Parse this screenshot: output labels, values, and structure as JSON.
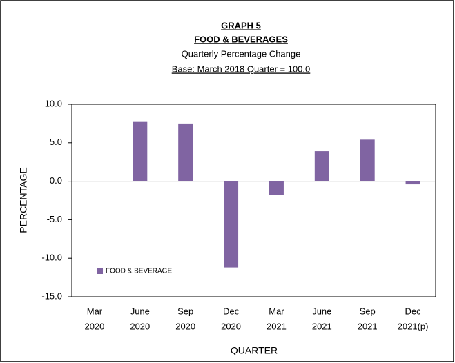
{
  "chart_data": {
    "type": "bar",
    "title_lines": [
      "GRAPH  5",
      "FOOD & BEVERAGES",
      "Quarterly Percentage Change",
      "Base: March 2018 Quarter = 100.0"
    ],
    "y_label": "PERCENTAGE",
    "x_label": "QUARTER",
    "categories": [
      [
        "Mar",
        "2020"
      ],
      [
        "June",
        "2020"
      ],
      [
        "Sep",
        "2020"
      ],
      [
        "Dec",
        "2020"
      ],
      [
        "Mar",
        "2021"
      ],
      [
        "June",
        "2021"
      ],
      [
        "Sep",
        "2021"
      ],
      [
        "Dec",
        "2021(p)"
      ]
    ],
    "series": [
      {
        "name": "FOOD & BEVERAGE",
        "color": "#8064a2",
        "values": [
          0,
          7.7,
          7.5,
          -11.2,
          -1.8,
          3.9,
          5.4,
          -0.4
        ]
      }
    ],
    "ylim": [
      -15,
      10
    ],
    "yticks": [
      {
        "value": -15,
        "label": "-15.0"
      },
      {
        "value": -10,
        "label": "-10.0"
      },
      {
        "value": -5,
        "label": "-5.0"
      },
      {
        "value": 0,
        "label": "0.0"
      },
      {
        "value": 5,
        "label": "5.0"
      },
      {
        "value": 10,
        "label": "10.0"
      }
    ],
    "legend": "bottom-left"
  }
}
